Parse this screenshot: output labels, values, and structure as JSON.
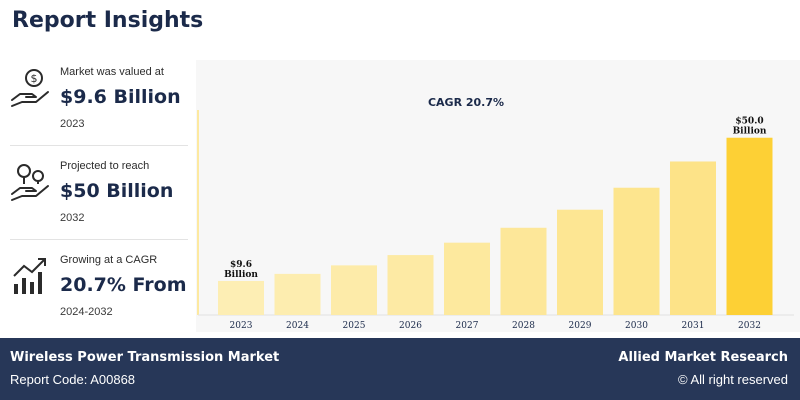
{
  "header": {
    "title": "Report Insights"
  },
  "stats": [
    {
      "label": "Market was valued at",
      "value": "$9.6 Billion",
      "year": "2023",
      "icon": "money-hand-icon"
    },
    {
      "label": "Projected to reach",
      "value": "$50 Billion",
      "year": "2032",
      "icon": "investment-growth-icon"
    },
    {
      "label": "Growing at a CAGR",
      "value": "20.7% From",
      "year": "2024-2032",
      "icon": "growth-chart-icon"
    }
  ],
  "footer": {
    "report_title": "Wireless Power Transmission Market",
    "report_code": "Report Code: A00868",
    "brand": "Allied Market Research",
    "rights": "© All right reserved"
  },
  "colors": {
    "navy": "#273758",
    "title_text": "#1b2a4a",
    "bar_light": "#fdeeb4",
    "bar_dark": "#fdd035"
  },
  "chart_data": {
    "type": "bar",
    "annotation": "CAGR 20.7%",
    "categories": [
      "2023",
      "2024",
      "2025",
      "2026",
      "2027",
      "2028",
      "2029",
      "2030",
      "2031",
      "2032"
    ],
    "values": [
      9.6,
      11.6,
      14.0,
      16.9,
      20.4,
      24.6,
      29.7,
      35.9,
      43.3,
      50.0
    ],
    "data_labels": [
      {
        "index": 0,
        "lines": [
          "$9.6",
          "Billion"
        ]
      },
      {
        "index": 9,
        "lines": [
          "$50.0",
          "Billion"
        ]
      }
    ],
    "ylim": [
      0,
      55
    ],
    "grid": false,
    "title": "",
    "xlabel": "",
    "ylabel": ""
  }
}
